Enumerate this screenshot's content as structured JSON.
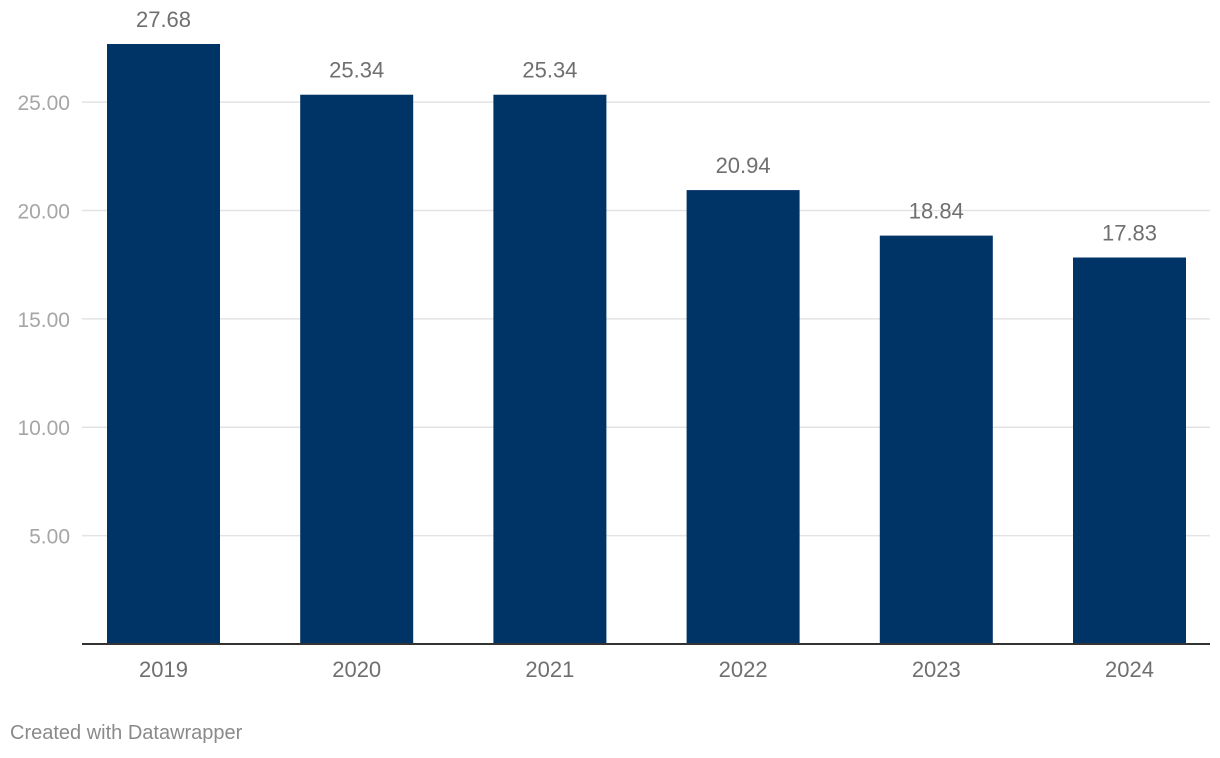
{
  "footer": {
    "credit": "Created with Datawrapper"
  },
  "chart_data": {
    "type": "bar",
    "categories": [
      "2019",
      "2020",
      "2021",
      "2022",
      "2023",
      "2024"
    ],
    "values": [
      27.68,
      25.34,
      25.34,
      20.94,
      18.84,
      17.83
    ],
    "value_labels": [
      "27.68",
      "25.34",
      "25.34",
      "20.94",
      "18.84",
      "17.83"
    ],
    "yticks": [
      5,
      10,
      15,
      20,
      25
    ],
    "ytick_labels": [
      "5.00",
      "10.00",
      "15.00",
      "20.00",
      "25.00"
    ],
    "ylim": [
      0,
      27.68
    ],
    "grid": true,
    "title": "",
    "xlabel": "",
    "ylabel": "",
    "colors": {
      "bar": "#003366",
      "grid": "#e3e3e3",
      "baseline": "#333333"
    }
  }
}
